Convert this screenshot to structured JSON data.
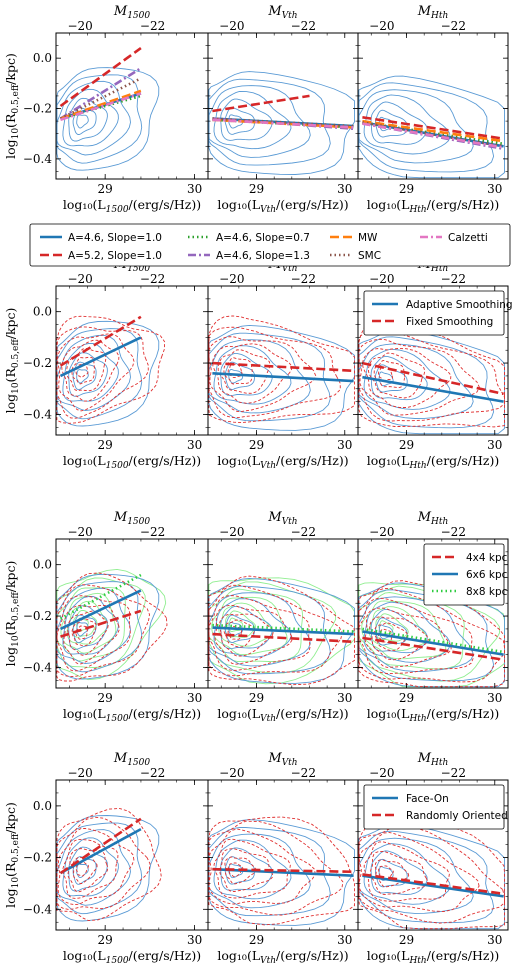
{
  "figure": {
    "rows": [
      {
        "ylabel": "log₁₀(R₀.₅,eff/kpc)",
        "panels": [
          "uv",
          "v",
          "h"
        ],
        "legend": "below",
        "legend_entries": [
          {
            "label": "A=4.6, Slope=1.0",
            "color": "#1f77b4",
            "style": "solid"
          },
          {
            "label": "A=5.2, Slope=1.0",
            "color": "#d62728",
            "style": "dashed"
          },
          {
            "label": "A=4.6, Slope=0.7",
            "color": "#2ca02c",
            "style": "dotted"
          },
          {
            "label": "A=4.6, Slope=1.3",
            "color": "#9467bd",
            "style": "dashdot"
          },
          {
            "label": "MW",
            "color": "#ff7f0e",
            "style": "dashed"
          },
          {
            "label": "SMC",
            "color": "#8c564b",
            "style": "dotted"
          },
          {
            "label": "Calzetti",
            "color": "#e377c2",
            "style": "dashdot"
          }
        ]
      },
      {
        "legend": "inset-top-right",
        "legend_entries": [
          {
            "label": "Adaptive Smoothing",
            "color": "#1f77b4",
            "style": "solid"
          },
          {
            "label": "Fixed Smoothing",
            "color": "#d62728",
            "style": "dashed"
          }
        ]
      },
      {
        "legend": "inset-top-right",
        "legend_entries": [
          {
            "label": "4x4 kpc",
            "color": "#d62728",
            "style": "dashed"
          },
          {
            "label": "6x6 kpc",
            "color": "#1f77b4",
            "style": "solid"
          },
          {
            "label": "8x8 kpc",
            "color": "#2ecc40",
            "style": "dotted"
          }
        ]
      },
      {
        "legend": "inset-top-right",
        "legend_entries": [
          {
            "label": "Face-On",
            "color": "#1f77b4",
            "style": "solid"
          },
          {
            "label": "Randomly Oriented",
            "color": "#d62728",
            "style": "dashed"
          }
        ]
      }
    ],
    "columns": [
      {
        "key": "uv",
        "top_label": "M",
        "top_sub": "1500",
        "bottom_label": "log₁₀(L",
        "bottom_sub": "1500",
        "bottom_tail": "/(erg/s/Hz))"
      },
      {
        "key": "v",
        "top_label": "M",
        "top_sub": "Vth",
        "bottom_label": "log₁₀(L",
        "bottom_sub": "Vth",
        "bottom_tail": "/(erg/s/Hz))"
      },
      {
        "key": "h",
        "top_label": "M",
        "top_sub": "Hth",
        "bottom_label": "log₁₀(L",
        "bottom_sub": "Hth",
        "bottom_tail": "/(erg/s/Hz))"
      }
    ],
    "ylabel_parts": {
      "main": "log",
      "sub1": "10",
      "open": "(R",
      "sub2": "0.5,eff",
      "tail": "/kpc)"
    },
    "axis_ticks": {
      "x_bottom": [
        "29",
        "30"
      ],
      "x_top": [
        "−20",
        "−22"
      ],
      "y": [
        "0.0",
        "−0.2",
        "−0.4"
      ]
    }
  },
  "chart_data": [
    {
      "type": "line",
      "title": "",
      "panel": "row1-M1500",
      "xlabel": "log10(L1500/(erg/s/Hz))",
      "ylabel": "log10(R0.5,eff/kpc)",
      "top_xlabel": "M1500",
      "xlim": [
        28.45,
        30.15
      ],
      "ylim": [
        -0.48,
        0.1
      ],
      "series": [
        {
          "name": "A=4.6, Slope=1.0",
          "x": [
            28.5,
            29.4
          ],
          "y": [
            -0.24,
            -0.14
          ]
        },
        {
          "name": "A=5.2, Slope=1.0",
          "x": [
            28.5,
            29.4
          ],
          "y": [
            -0.19,
            0.04
          ]
        },
        {
          "name": "A=4.6, Slope=0.7",
          "x": [
            28.5,
            29.4
          ],
          "y": [
            -0.24,
            -0.15
          ]
        },
        {
          "name": "A=4.6, Slope=1.3",
          "x": [
            28.5,
            29.4
          ],
          "y": [
            -0.24,
            -0.04
          ]
        },
        {
          "name": "MW",
          "x": [
            28.5,
            29.4
          ],
          "y": [
            -0.24,
            -0.13
          ]
        },
        {
          "name": "SMC",
          "x": [
            28.5,
            29.4
          ],
          "y": [
            -0.24,
            -0.08
          ]
        },
        {
          "name": "Calzetti",
          "x": [
            28.5,
            29.4
          ],
          "y": [
            -0.245,
            -0.14
          ]
        }
      ]
    },
    {
      "type": "line",
      "title": "",
      "panel": "row1-MVth",
      "xlabel": "log10(LVth/(erg/s/Hz))",
      "top_xlabel": "MVth",
      "xlim": [
        28.45,
        30.15
      ],
      "ylim": [
        -0.48,
        0.1
      ],
      "series": [
        {
          "name": "A=4.6, Slope=1.0",
          "x": [
            28.5,
            30.1
          ],
          "y": [
            -0.24,
            -0.27
          ]
        },
        {
          "name": "A=5.2, Slope=1.0",
          "x": [
            28.5,
            29.6
          ],
          "y": [
            -0.21,
            -0.15
          ]
        },
        {
          "name": "A=4.6, Slope=0.7",
          "x": [
            28.5,
            30.1
          ],
          "y": [
            -0.245,
            -0.275
          ]
        },
        {
          "name": "A=4.6, Slope=1.3",
          "x": [
            28.5,
            30.1
          ],
          "y": [
            -0.24,
            -0.28
          ]
        },
        {
          "name": "MW",
          "x": [
            28.5,
            30.1
          ],
          "y": [
            -0.245,
            -0.275
          ]
        },
        {
          "name": "SMC",
          "x": [
            28.5,
            30.1
          ],
          "y": [
            -0.24,
            -0.27
          ]
        },
        {
          "name": "Calzetti",
          "x": [
            28.5,
            30.1
          ],
          "y": [
            -0.245,
            -0.275
          ]
        }
      ]
    },
    {
      "type": "line",
      "title": "",
      "panel": "row1-MHth",
      "xlabel": "log10(LHth/(erg/s/Hz))",
      "top_xlabel": "MHth",
      "xlim": [
        28.45,
        30.15
      ],
      "ylim": [
        -0.48,
        0.1
      ],
      "series": [
        {
          "name": "A=4.6, Slope=1.0",
          "x": [
            28.5,
            30.1
          ],
          "y": [
            -0.255,
            -0.35
          ]
        },
        {
          "name": "A=5.2, Slope=1.0",
          "x": [
            28.5,
            30.1
          ],
          "y": [
            -0.235,
            -0.32
          ]
        },
        {
          "name": "A=4.6, Slope=0.7",
          "x": [
            28.5,
            30.1
          ],
          "y": [
            -0.255,
            -0.34
          ]
        },
        {
          "name": "A=4.6, Slope=1.3",
          "x": [
            28.5,
            30.1
          ],
          "y": [
            -0.26,
            -0.36
          ]
        },
        {
          "name": "MW",
          "x": [
            28.5,
            30.1
          ],
          "y": [
            -0.25,
            -0.33
          ]
        },
        {
          "name": "SMC",
          "x": [
            28.5,
            30.1
          ],
          "y": [
            -0.255,
            -0.35
          ]
        },
        {
          "name": "Calzetti",
          "x": [
            28.5,
            30.1
          ],
          "y": [
            -0.26,
            -0.355
          ]
        }
      ]
    },
    {
      "type": "line",
      "title": "",
      "panel": "row2-M1500",
      "xlim": [
        28.45,
        30.15
      ],
      "ylim": [
        -0.48,
        0.1
      ],
      "series": [
        {
          "name": "Adaptive Smoothing",
          "x": [
            28.5,
            29.4
          ],
          "y": [
            -0.25,
            -0.1
          ]
        },
        {
          "name": "Fixed Smoothing",
          "x": [
            28.5,
            29.4
          ],
          "y": [
            -0.21,
            -0.02
          ]
        }
      ]
    },
    {
      "type": "line",
      "title": "",
      "panel": "row2-MVth",
      "xlim": [
        28.45,
        30.15
      ],
      "ylim": [
        -0.48,
        0.1
      ],
      "series": [
        {
          "name": "Adaptive Smoothing",
          "x": [
            28.5,
            30.1
          ],
          "y": [
            -0.24,
            -0.27
          ]
        },
        {
          "name": "Fixed Smoothing",
          "x": [
            28.5,
            30.1
          ],
          "y": [
            -0.2,
            -0.23
          ]
        }
      ]
    },
    {
      "type": "line",
      "title": "",
      "panel": "row2-MHth",
      "xlim": [
        28.45,
        30.15
      ],
      "ylim": [
        -0.48,
        0.1
      ],
      "series": [
        {
          "name": "Adaptive Smoothing",
          "x": [
            28.5,
            30.1
          ],
          "y": [
            -0.255,
            -0.35
          ]
        },
        {
          "name": "Fixed Smoothing",
          "x": [
            28.5,
            30.1
          ],
          "y": [
            -0.2,
            -0.32
          ]
        }
      ]
    },
    {
      "type": "line",
      "title": "",
      "panel": "row3-M1500",
      "xlim": [
        28.45,
        30.15
      ],
      "ylim": [
        -0.48,
        0.1
      ],
      "series": [
        {
          "name": "4x4 kpc",
          "x": [
            28.5,
            29.4
          ],
          "y": [
            -0.28,
            -0.18
          ]
        },
        {
          "name": "6x6 kpc",
          "x": [
            28.5,
            29.4
          ],
          "y": [
            -0.25,
            -0.1
          ]
        },
        {
          "name": "8x8 kpc",
          "x": [
            28.5,
            29.4
          ],
          "y": [
            -0.21,
            -0.04
          ]
        }
      ]
    },
    {
      "type": "line",
      "title": "",
      "panel": "row3-MVth",
      "xlim": [
        28.45,
        30.15
      ],
      "ylim": [
        -0.48,
        0.1
      ],
      "series": [
        {
          "name": "4x4 kpc",
          "x": [
            28.5,
            30.1
          ],
          "y": [
            -0.27,
            -0.3
          ]
        },
        {
          "name": "6x6 kpc",
          "x": [
            28.5,
            30.1
          ],
          "y": [
            -0.245,
            -0.27
          ]
        },
        {
          "name": "8x8 kpc",
          "x": [
            28.5,
            30.1
          ],
          "y": [
            -0.235,
            -0.26
          ]
        }
      ]
    },
    {
      "type": "line",
      "title": "",
      "panel": "row3-MHth",
      "xlim": [
        28.45,
        30.15
      ],
      "ylim": [
        -0.48,
        0.1
      ],
      "series": [
        {
          "name": "4x4 kpc",
          "x": [
            28.5,
            30.1
          ],
          "y": [
            -0.285,
            -0.37
          ]
        },
        {
          "name": "6x6 kpc",
          "x": [
            28.5,
            30.1
          ],
          "y": [
            -0.26,
            -0.35
          ]
        },
        {
          "name": "8x8 kpc",
          "x": [
            28.5,
            30.1
          ],
          "y": [
            -0.25,
            -0.34
          ]
        }
      ]
    },
    {
      "type": "line",
      "title": "",
      "panel": "row4-M1500",
      "xlim": [
        28.45,
        30.15
      ],
      "ylim": [
        -0.48,
        0.1
      ],
      "series": [
        {
          "name": "Face-On",
          "x": [
            28.5,
            29.4
          ],
          "y": [
            -0.26,
            -0.09
          ]
        },
        {
          "name": "Randomly Oriented",
          "x": [
            28.5,
            29.4
          ],
          "y": [
            -0.26,
            -0.05
          ]
        }
      ]
    },
    {
      "type": "line",
      "title": "",
      "panel": "row4-MVth",
      "xlim": [
        28.45,
        30.15
      ],
      "ylim": [
        -0.48,
        0.1
      ],
      "series": [
        {
          "name": "Face-On",
          "x": [
            28.5,
            30.1
          ],
          "y": [
            -0.245,
            -0.27
          ]
        },
        {
          "name": "Randomly Oriented",
          "x": [
            28.5,
            30.1
          ],
          "y": [
            -0.245,
            -0.255
          ]
        }
      ]
    },
    {
      "type": "line",
      "title": "",
      "panel": "row4-MHth",
      "xlim": [
        28.45,
        30.15
      ],
      "ylim": [
        -0.48,
        0.1
      ],
      "series": [
        {
          "name": "Face-On",
          "x": [
            28.5,
            30.1
          ],
          "y": [
            -0.27,
            -0.35
          ]
        },
        {
          "name": "Randomly Oriented",
          "x": [
            28.5,
            30.1
          ],
          "y": [
            -0.265,
            -0.34
          ]
        }
      ]
    }
  ]
}
